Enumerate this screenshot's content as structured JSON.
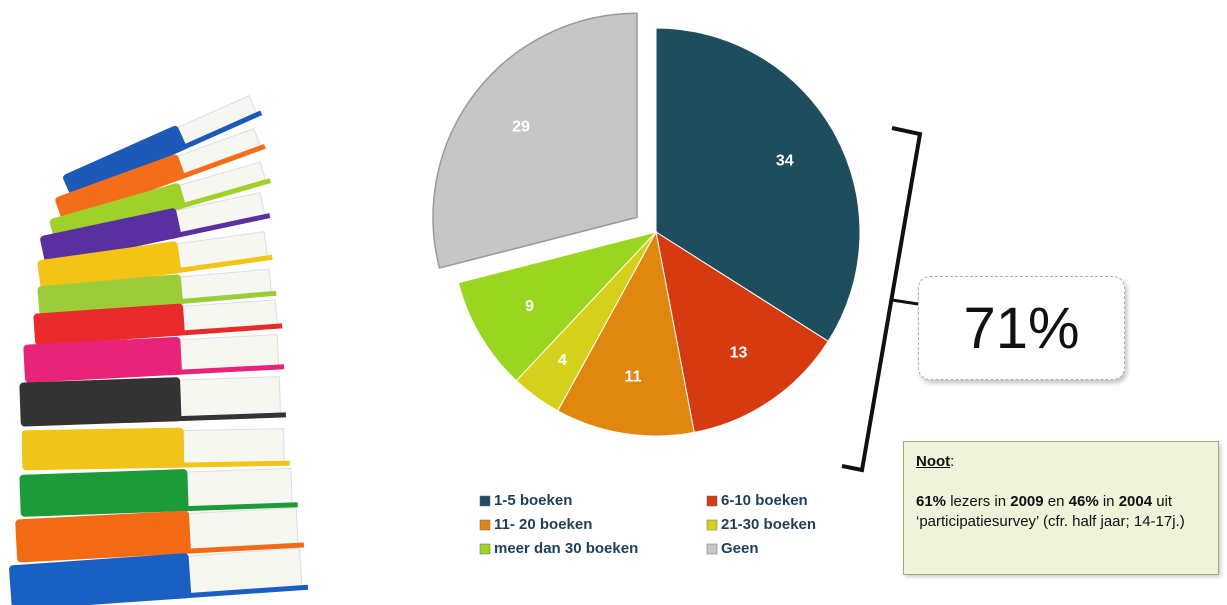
{
  "chart_data": {
    "type": "pie",
    "categories": [
      "1-5 boeken",
      "6-10 boeken",
      "11- 20 boeken",
      "21-30 boeken",
      "meer dan 30 boeken",
      "Geen"
    ],
    "values": [
      34,
      13,
      11,
      4,
      9,
      29
    ],
    "colors": [
      "#1e4d5e",
      "#d63a10",
      "#e0870f",
      "#d4d01c",
      "#9ad61f",
      "#c6c6c6"
    ],
    "explode": [
      false,
      false,
      false,
      false,
      false,
      true
    ]
  },
  "callout": "71%",
  "note": {
    "title": "Noot",
    "title_suffix": ":",
    "segments": [
      "61%",
      " lezers in ",
      "2009",
      " en ",
      "46%",
      " in ",
      "2004",
      " uit ‘participatiesurvey’ (cfr. half jaar; 14-17j.)"
    ]
  }
}
